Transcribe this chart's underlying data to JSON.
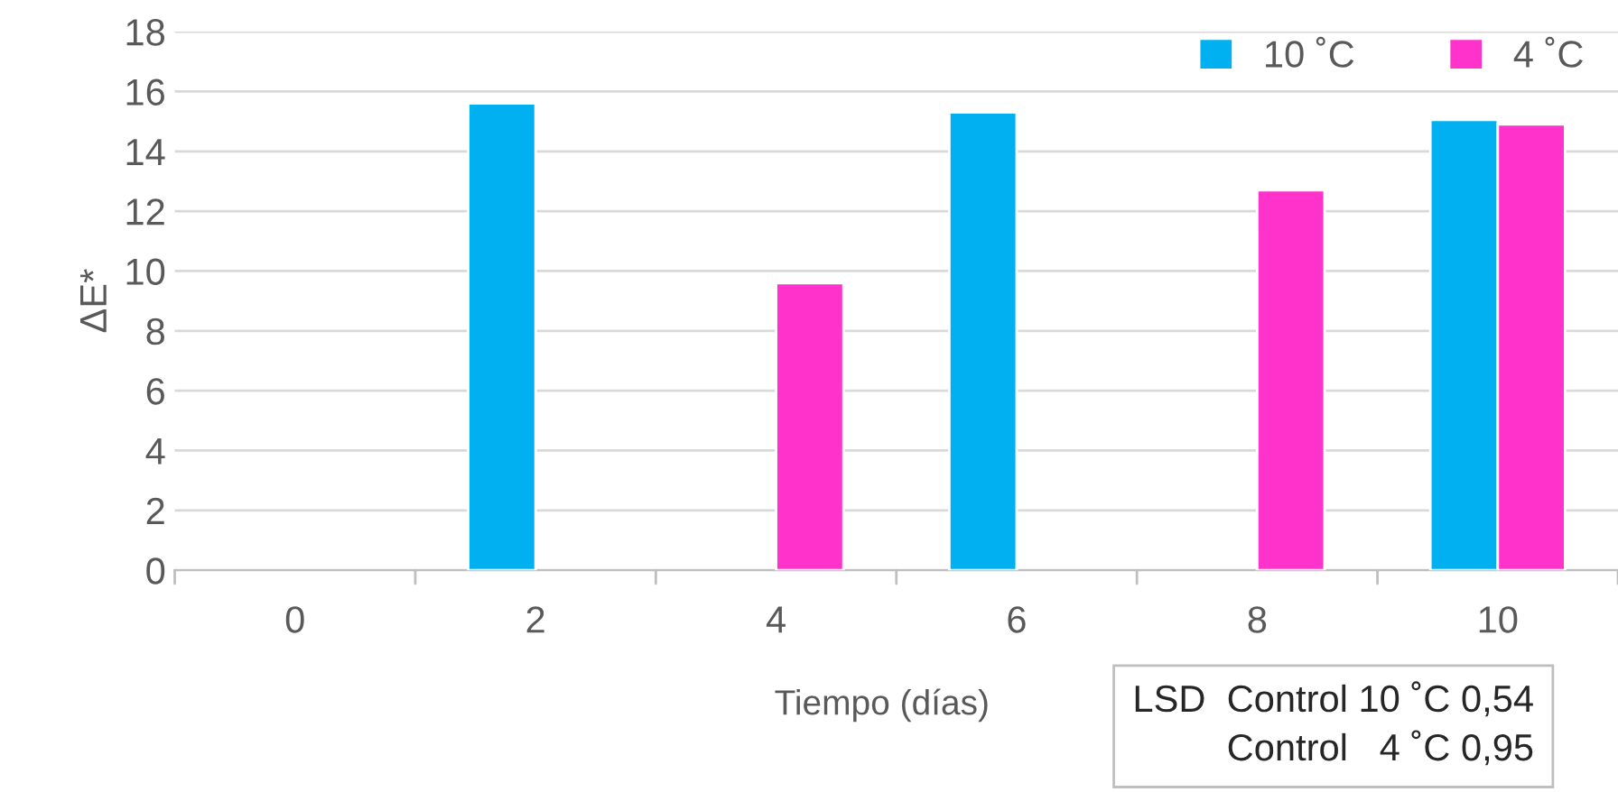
{
  "chart_data": {
    "type": "bar",
    "xlabel": "Tiempo (días)",
    "ylabel": "ΔE*",
    "categories": [
      "0",
      "2",
      "4",
      "6",
      "8",
      "10"
    ],
    "series": [
      {
        "name": "10 ˚C",
        "color": "#00b0f0",
        "values": [
          null,
          15.6,
          null,
          15.3,
          null,
          15.05
        ]
      },
      {
        "name": "4 ˚C",
        "color": "#ff33cc",
        "values": [
          null,
          null,
          9.6,
          null,
          12.7,
          14.9
        ]
      }
    ],
    "ylim": [
      0,
      18
    ],
    "yticks": [
      0,
      2,
      4,
      6,
      8,
      10,
      12,
      14,
      16,
      18
    ],
    "grid": "y",
    "legend": "top right",
    "annotations": [
      "LSD  Control 10 ˚C 0,54\nControl   4 ˚C 0,95"
    ]
  }
}
